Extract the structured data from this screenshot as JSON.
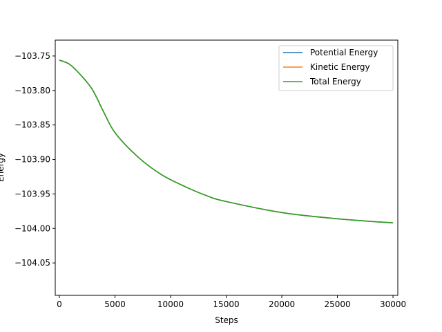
{
  "chart_data": {
    "type": "line",
    "title": "",
    "xlabel": "Steps",
    "ylabel": "Energy",
    "xlim": [
      -370,
      30430
    ],
    "ylim": [
      -104.097,
      -103.727
    ],
    "xticks": [
      0,
      5000,
      10000,
      15000,
      20000,
      25000,
      30000
    ],
    "xtick_labels": [
      "0",
      "5000",
      "10000",
      "15000",
      "20000",
      "25000",
      "30000"
    ],
    "yticks": [
      -103.75,
      -103.8,
      -103.85,
      -103.9,
      -103.95,
      -104.0,
      -104.05
    ],
    "ytick_labels": [
      "−103.75",
      "−103.80",
      "−103.85",
      "−103.90",
      "−103.95",
      "−104.00",
      "−104.05"
    ],
    "grid": false,
    "legend_position": "top-right",
    "x": [
      0,
      910,
      1940,
      2980,
      4010,
      5040,
      7110,
      9180,
      11250,
      13320,
      15000,
      20000,
      25000,
      30000
    ],
    "series": [
      {
        "name": "Potential Energy",
        "color": "#1f77b4",
        "values": [
          -103.756,
          -103.762,
          -103.778,
          -103.799,
          -103.832,
          -103.862,
          -103.897,
          -103.922,
          -103.939,
          -103.953,
          -103.961,
          -103.977,
          -103.986,
          -103.992
        ]
      },
      {
        "name": "Kinetic Energy",
        "color": "#ff7f0e",
        "values": [
          -103.756,
          -103.762,
          -103.778,
          -103.799,
          -103.832,
          -103.862,
          -103.897,
          -103.922,
          -103.939,
          -103.953,
          -103.961,
          -103.977,
          -103.986,
          -103.992
        ]
      },
      {
        "name": "Total Energy",
        "color": "#2ca02c",
        "values": [
          -103.756,
          -103.762,
          -103.778,
          -103.799,
          -103.832,
          -103.862,
          -103.897,
          -103.922,
          -103.939,
          -103.953,
          -103.961,
          -103.977,
          -103.986,
          -103.992
        ]
      }
    ]
  }
}
